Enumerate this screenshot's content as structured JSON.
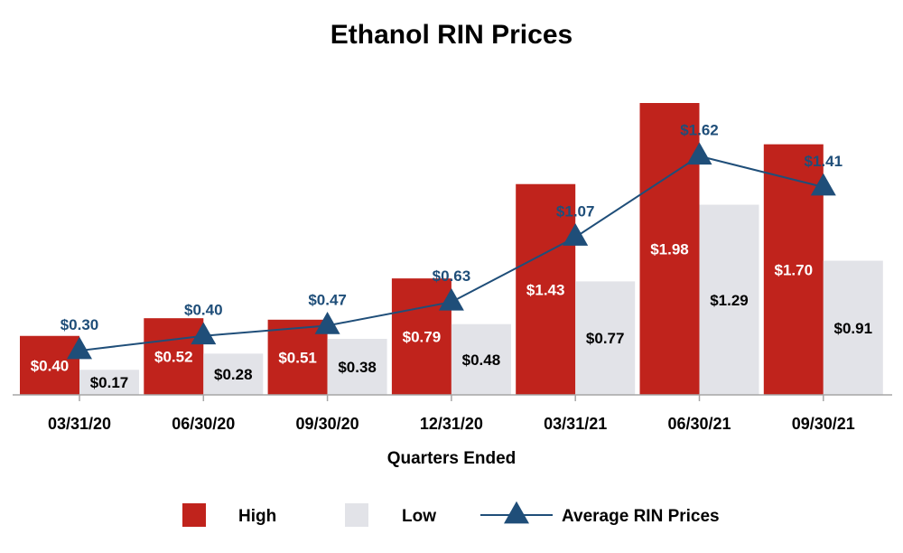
{
  "chart_data": {
    "type": "bar",
    "title": "Ethanol RIN Prices",
    "xlabel": "Quarters Ended",
    "ylabel": "",
    "ylim": [
      0,
      2.2
    ],
    "grid": false,
    "legend_position": "bottom",
    "categories": [
      "03/31/20",
      "06/30/20",
      "09/30/20",
      "12/31/20",
      "03/31/21",
      "06/30/21",
      "09/30/21"
    ],
    "series": [
      {
        "name": "High",
        "type": "bar",
        "color": "#c0231c",
        "values": [
          0.4,
          0.52,
          0.51,
          0.79,
          1.43,
          1.98,
          1.7
        ],
        "labels": [
          "$0.40",
          "$0.52",
          "$0.51",
          "$0.79",
          "$1.43",
          "$1.98",
          "$1.70"
        ]
      },
      {
        "name": "Low",
        "type": "bar",
        "color": "#e2e3e8",
        "values": [
          0.17,
          0.28,
          0.38,
          0.48,
          0.77,
          1.29,
          0.91
        ],
        "labels": [
          "$0.17",
          "$0.28",
          "$0.38",
          "$0.48",
          "$0.77",
          "$1.29",
          "$0.91"
        ]
      },
      {
        "name": "Average RIN Prices",
        "type": "line",
        "marker": "triangle",
        "color": "#1f4e79",
        "values": [
          0.3,
          0.4,
          0.47,
          0.63,
          1.07,
          1.62,
          1.41
        ],
        "labels": [
          "$0.30",
          "$0.40",
          "$0.47",
          "$0.63",
          "$1.07",
          "$1.62",
          "$1.41"
        ]
      }
    ]
  }
}
